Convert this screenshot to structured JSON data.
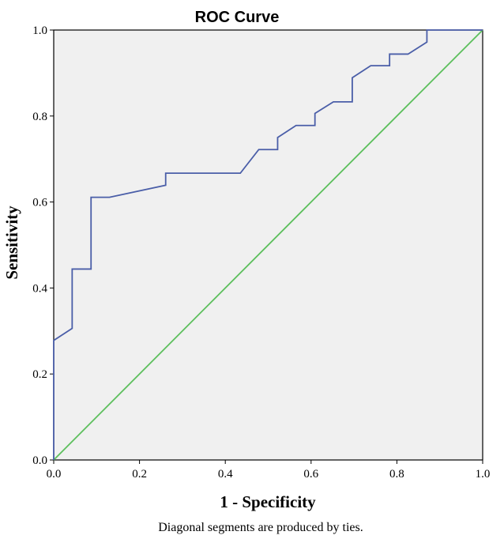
{
  "chart_data": {
    "type": "line",
    "title": "ROC Curve",
    "xlabel": "1 - Specificity",
    "ylabel": "Sensitivity",
    "footnote": "Diagonal segments are produced by ties.",
    "xlim": [
      0.0,
      1.0
    ],
    "ylim": [
      0.0,
      1.0
    ],
    "x_ticks": [
      0.0,
      0.2,
      0.4,
      0.6,
      0.8,
      1.0
    ],
    "y_ticks": [
      0.0,
      0.2,
      0.4,
      0.6,
      0.8,
      1.0
    ],
    "x_tick_labels": [
      "0.0",
      "0.2",
      "0.4",
      "0.6",
      "0.8",
      "1.0"
    ],
    "y_tick_labels": [
      "0.0",
      "0.2",
      "0.4",
      "0.6",
      "0.8",
      "1.0"
    ],
    "grid": false,
    "background_color": "#f0f0f0",
    "series": [
      {
        "color": "#4a5ea8",
        "x": [
          0.0,
          0.0,
          0.043,
          0.043,
          0.087,
          0.087,
          0.13,
          0.261,
          0.261,
          0.435,
          0.478,
          0.522,
          0.522,
          0.565,
          0.609,
          0.609,
          0.652,
          0.696,
          0.696,
          0.739,
          0.783,
          0.783,
          0.826,
          0.87,
          0.87,
          1.0
        ],
        "y": [
          0.0,
          0.278,
          0.306,
          0.444,
          0.444,
          0.611,
          0.611,
          0.639,
          0.667,
          0.667,
          0.722,
          0.722,
          0.75,
          0.778,
          0.778,
          0.806,
          0.833,
          0.833,
          0.889,
          0.917,
          0.917,
          0.944,
          0.944,
          0.972,
          1.0,
          1.0
        ]
      },
      {
        "color": "#5cbf5c",
        "x": [
          0.0,
          1.0
        ],
        "y": [
          0.0,
          1.0
        ]
      }
    ]
  }
}
